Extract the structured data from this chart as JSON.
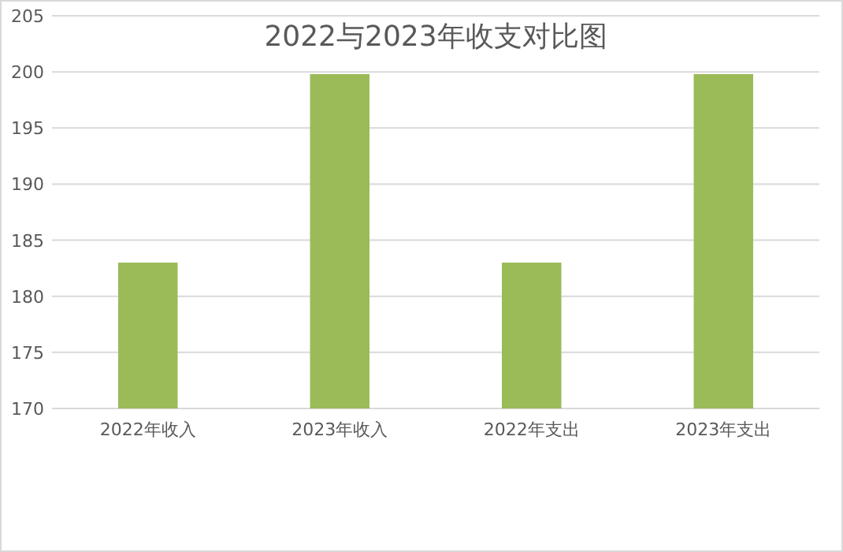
{
  "chart_data": {
    "type": "bar",
    "title": "2022与2023年收支对比图",
    "categories": [
      "2022年收入",
      "2023年收入",
      "2022年支出",
      "2023年支出"
    ],
    "values": [
      183,
      199.8,
      183,
      199.8
    ],
    "color": "#9bbb59",
    "ylim": [
      170,
      205
    ],
    "yticks": [
      170,
      175,
      180,
      185,
      190,
      195,
      200,
      205
    ],
    "grid": "y",
    "legend": false
  }
}
